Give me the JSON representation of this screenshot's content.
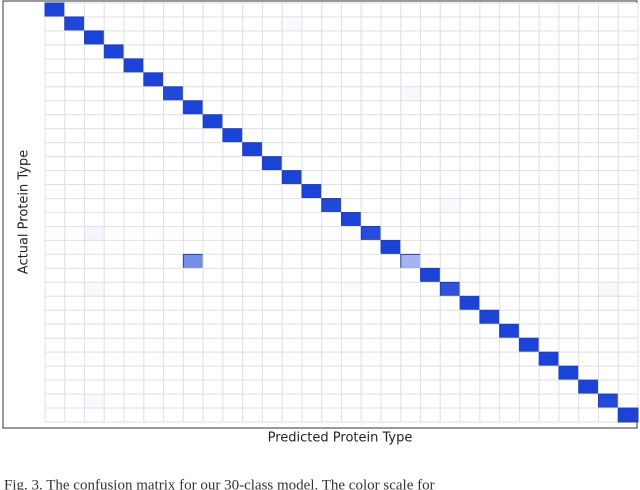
{
  "chart_data": {
    "type": "heatmap",
    "x_label": "Predicted Protein Type",
    "y_label": "Actual Protein Type",
    "caption": "Fig. 3.   The confusion matrix for our 30-class model. The color scale for",
    "colors": [
      "#ffffff",
      "#1c43d8"
    ],
    "zlim": [
      0,
      1
    ],
    "grid": true,
    "z": [
      [
        1,
        0,
        0,
        0,
        0,
        0,
        0,
        0,
        0,
        0,
        0,
        0,
        0,
        0,
        0,
        0,
        0,
        0,
        0,
        0,
        0,
        0,
        0,
        0,
        0,
        0,
        0,
        0,
        0,
        0
      ],
      [
        0,
        0.98,
        0,
        0,
        0,
        0,
        0,
        0,
        0,
        0,
        0,
        0,
        0.02,
        0,
        0,
        0,
        0,
        0,
        0,
        0,
        0,
        0,
        0,
        0,
        0,
        0,
        0,
        0,
        0,
        0
      ],
      [
        0,
        0,
        1,
        0,
        0,
        0,
        0,
        0,
        0,
        0,
        0,
        0,
        0,
        0,
        0,
        0,
        0,
        0,
        0,
        0,
        0,
        0,
        0,
        0,
        0,
        0,
        0,
        0,
        0,
        0
      ],
      [
        0,
        0,
        0,
        1,
        0,
        0,
        0,
        0,
        0,
        0,
        0,
        0,
        0,
        0,
        0,
        0,
        0,
        0,
        0,
        0,
        0,
        0,
        0,
        0,
        0,
        0,
        0,
        0,
        0,
        0
      ],
      [
        0,
        0,
        0,
        0,
        1,
        0,
        0,
        0,
        0,
        0,
        0,
        0,
        0,
        0,
        0,
        0,
        0,
        0,
        0,
        0,
        0,
        0,
        0,
        0,
        0,
        0,
        0,
        0,
        0,
        0
      ],
      [
        0,
        0,
        0,
        0,
        0,
        1,
        0,
        0,
        0,
        0,
        0,
        0,
        0,
        0,
        0,
        0,
        0,
        0,
        0,
        0,
        0,
        0,
        0,
        0,
        0,
        0,
        0,
        0,
        0,
        0
      ],
      [
        0,
        0,
        0,
        0,
        0,
        0,
        0.97,
        0,
        0,
        0,
        0,
        0,
        0,
        0,
        0,
        0,
        0,
        0,
        0.03,
        0,
        0,
        0,
        0,
        0,
        0,
        0,
        0,
        0,
        0,
        0
      ],
      [
        0,
        0,
        0,
        0,
        0,
        0,
        0,
        1,
        0,
        0,
        0,
        0,
        0,
        0,
        0,
        0,
        0,
        0,
        0,
        0,
        0,
        0,
        0,
        0,
        0,
        0,
        0,
        0,
        0,
        0
      ],
      [
        0,
        0,
        0,
        0,
        0,
        0,
        0,
        0,
        1,
        0,
        0,
        0,
        0,
        0,
        0,
        0,
        0,
        0,
        0,
        0,
        0,
        0,
        0,
        0,
        0,
        0,
        0,
        0,
        0,
        0
      ],
      [
        0,
        0,
        0,
        0,
        0,
        0,
        0,
        0,
        0,
        1,
        0,
        0,
        0,
        0,
        0,
        0,
        0,
        0,
        0,
        0,
        0,
        0,
        0,
        0,
        0,
        0,
        0,
        0,
        0,
        0
      ],
      [
        0,
        0,
        0,
        0,
        0,
        0,
        0,
        0,
        0,
        0,
        1,
        0,
        0,
        0,
        0,
        0,
        0,
        0,
        0,
        0,
        0,
        0,
        0,
        0,
        0,
        0,
        0,
        0,
        0,
        0
      ],
      [
        0,
        0,
        0,
        0,
        0,
        0,
        0,
        0,
        0,
        0,
        0,
        1,
        0,
        0,
        0,
        0,
        0,
        0,
        0,
        0,
        0,
        0,
        0,
        0,
        0,
        0,
        0,
        0,
        0,
        0
      ],
      [
        0,
        0,
        0,
        0,
        0,
        0,
        0,
        0,
        0,
        0,
        0,
        0,
        1,
        0,
        0,
        0,
        0,
        0,
        0,
        0,
        0,
        0,
        0,
        0,
        0,
        0,
        0,
        0,
        0,
        0
      ],
      [
        0,
        0,
        0,
        0,
        0,
        0,
        0,
        0,
        0,
        0,
        0,
        0,
        0,
        1,
        0,
        0,
        0,
        0,
        0,
        0,
        0,
        0,
        0,
        0,
        0,
        0,
        0,
        0,
        0,
        0
      ],
      [
        0,
        0,
        0,
        0,
        0,
        0,
        0,
        0,
        0,
        0,
        0,
        0,
        0,
        0,
        0.97,
        0,
        0,
        0,
        0,
        0,
        0.03,
        0,
        0,
        0,
        0,
        0,
        0,
        0,
        0,
        0
      ],
      [
        0,
        0,
        0,
        0,
        0,
        0,
        0,
        0,
        0,
        0,
        0,
        0,
        0,
        0,
        0,
        1,
        0,
        0,
        0,
        0,
        0,
        0,
        0,
        0,
        0,
        0,
        0,
        0,
        0,
        0
      ],
      [
        0,
        0,
        0.05,
        0,
        0,
        0,
        0,
        0,
        0,
        0,
        0,
        0,
        0,
        0,
        0,
        0,
        0.95,
        0,
        0,
        0,
        0,
        0,
        0,
        0,
        0,
        0,
        0,
        0,
        0,
        0
      ],
      [
        0,
        0,
        0,
        0,
        0,
        0,
        0,
        0,
        0,
        0,
        0,
        0,
        0,
        0,
        0,
        0,
        0,
        1,
        0,
        0,
        0,
        0,
        0,
        0,
        0,
        0,
        0,
        0,
        0,
        0
      ],
      [
        0,
        0,
        0,
        0,
        0,
        0,
        0,
        0.6,
        0,
        0,
        0,
        0,
        0,
        0,
        0,
        0,
        0,
        0,
        0.4,
        0,
        0,
        0,
        0,
        0,
        0,
        0,
        0,
        0,
        0,
        0
      ],
      [
        0,
        0,
        0,
        0,
        0,
        0,
        0,
        0,
        0,
        0,
        0,
        0,
        0,
        0,
        0,
        0,
        0,
        0,
        0,
        1,
        0,
        0,
        0,
        0,
        0,
        0,
        0,
        0,
        0,
        0
      ],
      [
        0,
        0,
        0.03,
        0,
        0,
        0,
        0,
        0,
        0,
        0,
        0,
        0,
        0,
        0,
        0,
        0.02,
        0,
        0,
        0,
        0,
        0.92,
        0,
        0,
        0,
        0,
        0,
        0,
        0,
        0.03,
        0
      ],
      [
        0,
        0,
        0,
        0,
        0,
        0,
        0,
        0,
        0,
        0,
        0,
        0,
        0,
        0,
        0,
        0,
        0,
        0,
        0,
        0,
        0,
        1,
        0,
        0,
        0,
        0,
        0,
        0,
        0,
        0
      ],
      [
        0,
        0,
        0,
        0,
        0,
        0,
        0,
        0,
        0,
        0,
        0,
        0,
        0,
        0,
        0,
        0,
        0,
        0,
        0,
        0,
        0,
        0,
        1,
        0,
        0,
        0,
        0,
        0,
        0,
        0
      ],
      [
        0,
        0,
        0,
        0,
        0,
        0,
        0,
        0,
        0,
        0,
        0,
        0,
        0,
        0,
        0,
        0,
        0,
        0,
        0,
        0,
        0,
        0,
        0,
        1,
        0,
        0,
        0,
        0,
        0,
        0
      ],
      [
        0,
        0,
        0,
        0,
        0,
        0,
        0,
        0,
        0,
        0,
        0,
        0,
        0,
        0,
        0,
        0,
        0,
        0,
        0,
        0,
        0,
        0,
        0,
        0,
        1,
        0,
        0,
        0,
        0,
        0
      ],
      [
        0,
        0,
        0,
        0,
        0,
        0,
        0,
        0,
        0,
        0,
        0,
        0,
        0,
        0,
        0,
        0,
        0,
        0,
        0,
        0,
        0,
        0,
        0,
        0,
        0,
        1,
        0,
        0,
        0,
        0
      ],
      [
        0,
        0,
        0,
        0,
        0,
        0,
        0,
        0,
        0,
        0,
        0,
        0,
        0,
        0,
        0,
        0,
        0,
        0,
        0,
        0,
        0,
        0,
        0,
        0,
        0,
        0,
        1,
        0,
        0,
        0
      ],
      [
        0,
        0,
        0,
        0,
        0,
        0,
        0,
        0,
        0,
        0,
        0,
        0,
        0,
        0,
        0,
        0,
        0,
        0,
        0,
        0,
        0,
        0,
        0,
        0,
        0,
        0,
        0,
        1,
        0,
        0
      ],
      [
        0,
        0,
        0.03,
        0,
        0,
        0,
        0,
        0,
        0,
        0,
        0,
        0,
        0,
        0,
        0,
        0,
        0,
        0,
        0,
        0,
        0,
        0,
        0,
        0,
        0,
        0,
        0,
        0,
        0.97,
        0
      ],
      [
        0,
        0,
        0,
        0,
        0,
        0,
        0,
        0,
        0,
        0,
        0,
        0,
        0,
        0,
        0,
        0,
        0,
        0,
        0,
        0,
        0,
        0,
        0,
        0,
        0,
        0,
        0,
        0,
        0,
        1
      ]
    ]
  }
}
